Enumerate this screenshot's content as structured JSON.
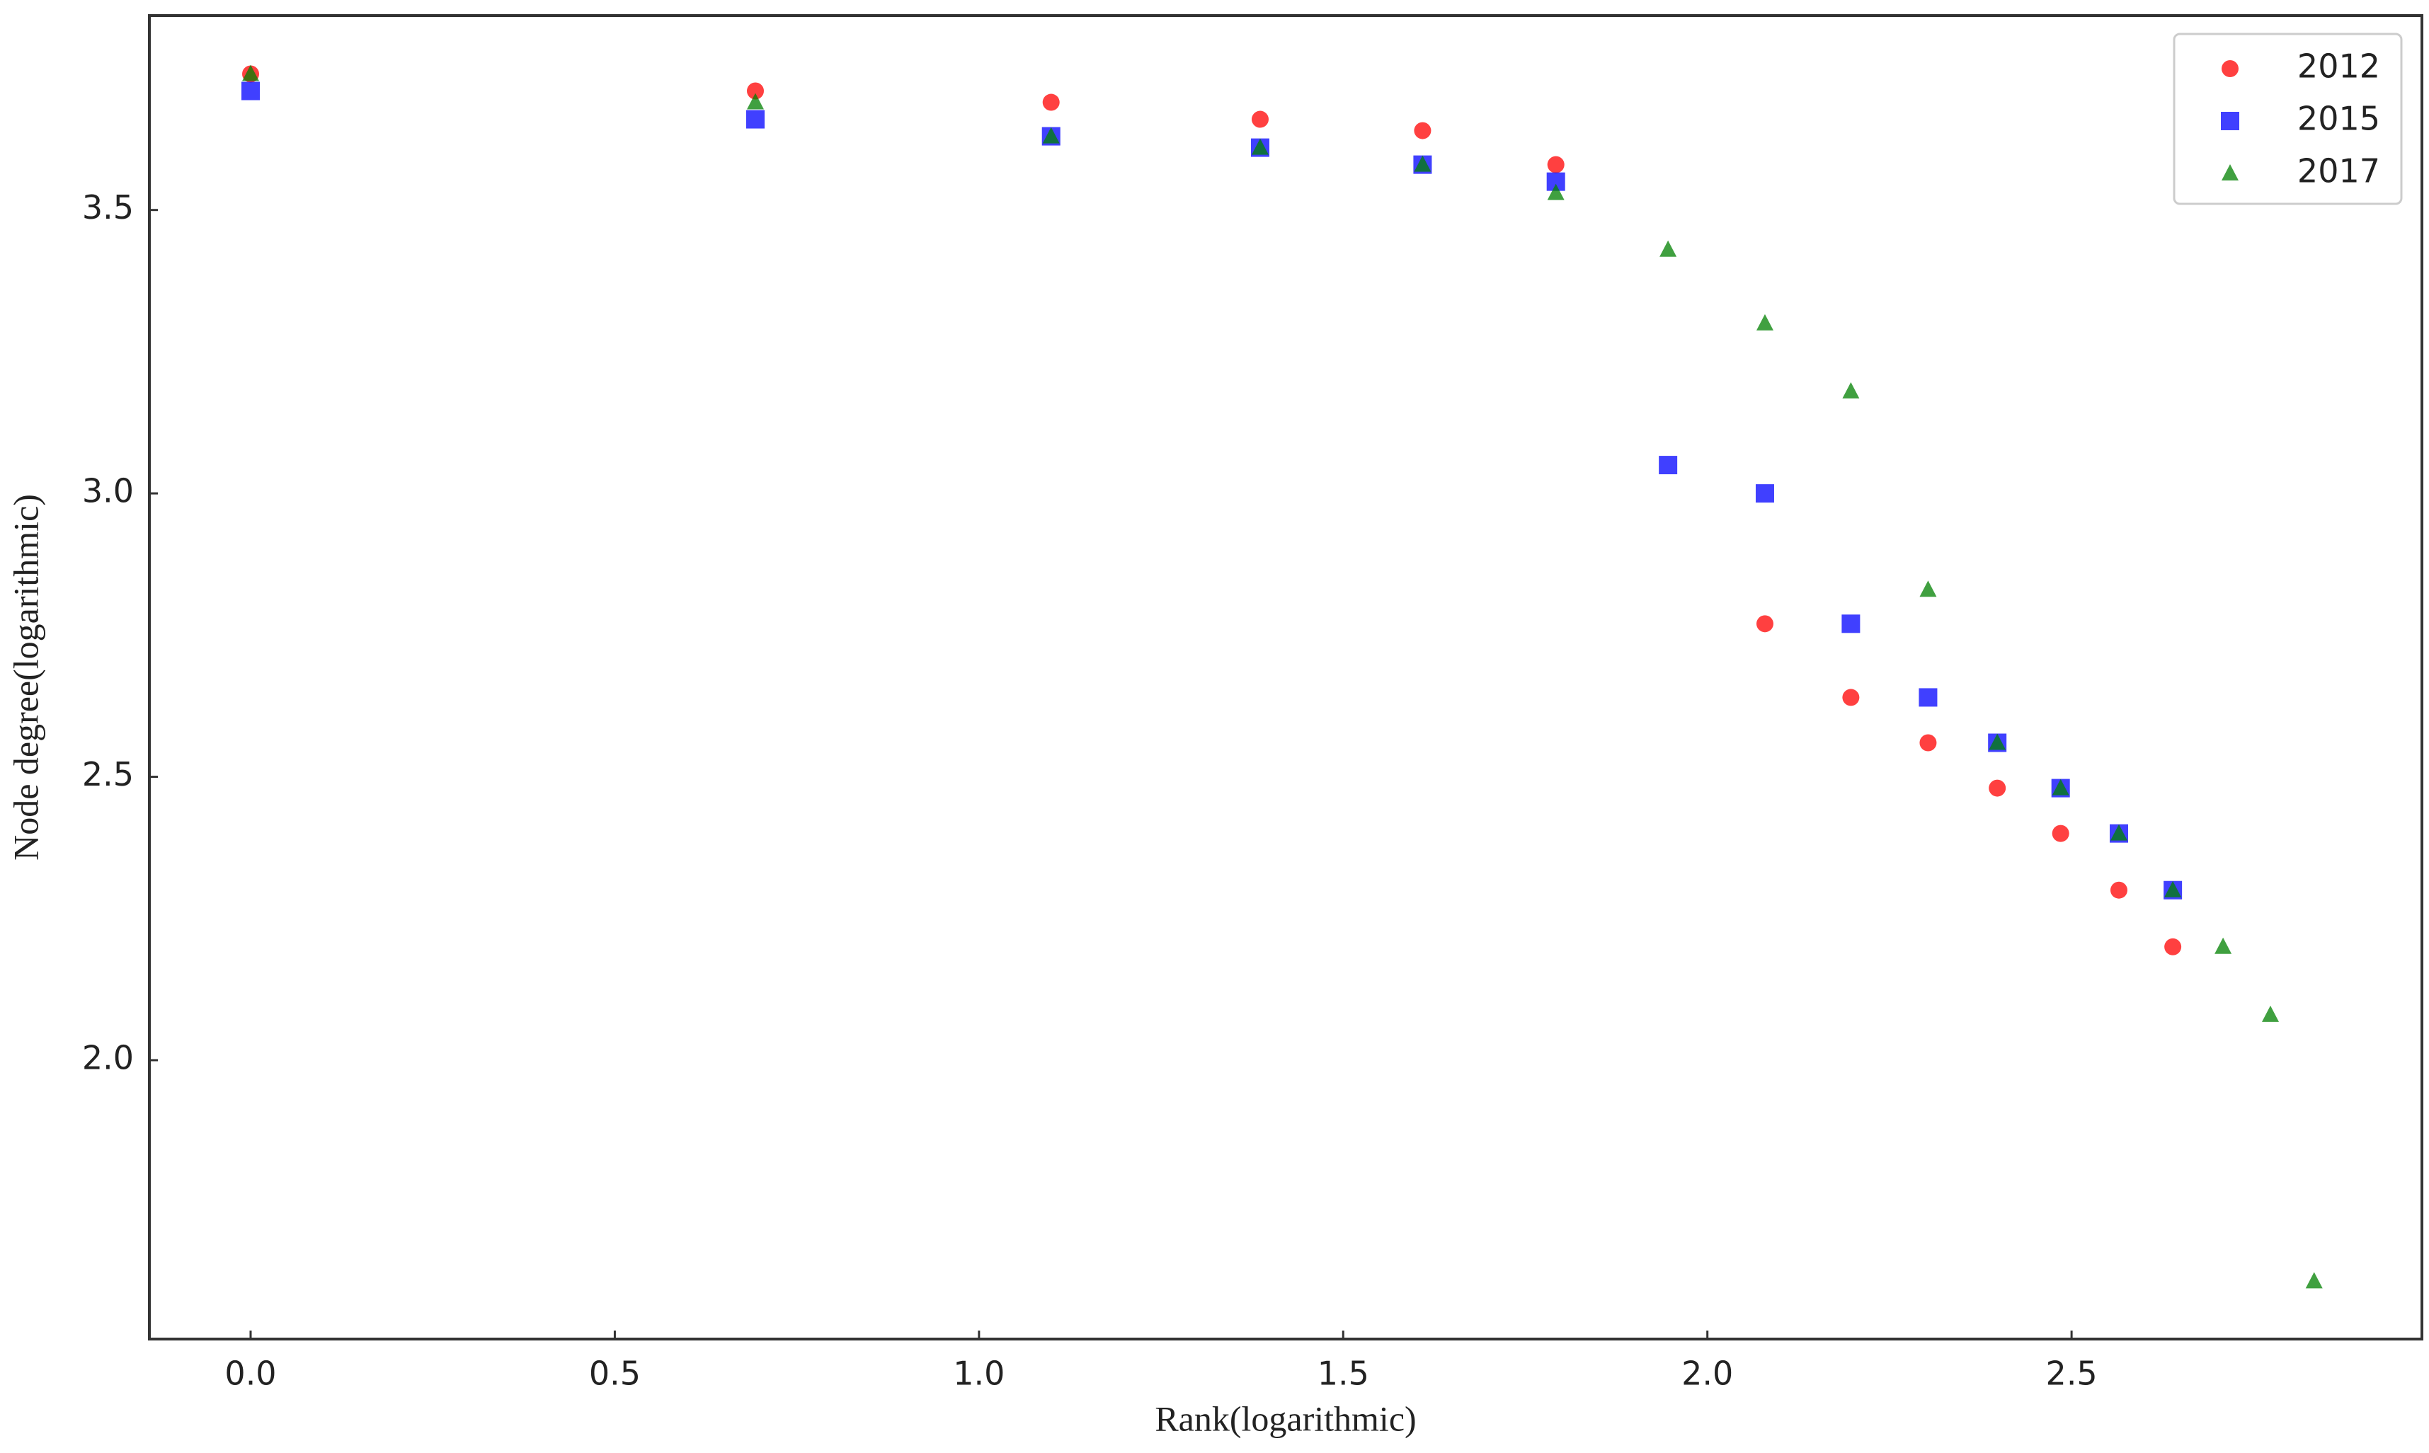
{
  "chart_data": {
    "type": "scatter",
    "x_label": "Rank(logarithmic)",
    "y_label": "Node degree(logarithmic)",
    "xlim": [
      -0.139,
      2.981
    ],
    "ylim": [
      1.508,
      3.843
    ],
    "xticks": [
      {
        "value": 0,
        "label": "0.0"
      },
      0.5,
      {
        "value": 1,
        "label": "1.0"
      },
      1.5,
      {
        "value": 2,
        "label": "2.0"
      },
      2.5
    ],
    "yticks": [
      {
        "value": 2,
        "label": "2.0"
      },
      2.5,
      {
        "value": 3,
        "label": "3.0"
      },
      3.5
    ],
    "legend": "upper right",
    "series": [
      {
        "name": "2012",
        "color": "#ff0000",
        "marker": "circle",
        "x": [
          0,
          0.693,
          1.099,
          1.386,
          1.609,
          1.792,
          2.079,
          2.197,
          2.303,
          2.398,
          2.485,
          2.565,
          2.639
        ],
        "values": [
          3.74,
          3.71,
          3.69,
          3.66,
          3.64,
          3.58,
          2.77,
          2.64,
          2.56,
          2.48,
          2.4,
          2.3,
          2.2
        ]
      },
      {
        "name": "2015",
        "color": "#0000ff",
        "marker": "square",
        "x": [
          0,
          0.693,
          1.099,
          1.386,
          1.609,
          1.792,
          1.946,
          2.079,
          2.197,
          2.303,
          2.398,
          2.485,
          2.565,
          2.639
        ],
        "values": [
          3.71,
          3.66,
          3.63,
          3.61,
          3.58,
          3.55,
          3.05,
          3.0,
          2.77,
          2.64,
          2.56,
          2.48,
          2.4,
          2.3
        ]
      },
      {
        "name": "2017",
        "color": "#008000",
        "marker": "triangle",
        "x": [
          0,
          0.693,
          1.099,
          1.386,
          1.609,
          1.792,
          1.946,
          2.079,
          2.197,
          2.303,
          2.398,
          2.485,
          2.565,
          2.639,
          2.708,
          2.773,
          2.833
        ],
        "values": [
          3.74,
          3.69,
          3.63,
          3.61,
          3.58,
          3.53,
          3.43,
          3.3,
          3.18,
          2.83,
          2.56,
          2.48,
          2.4,
          2.3,
          2.2,
          2.08,
          1.61
        ]
      }
    ]
  }
}
